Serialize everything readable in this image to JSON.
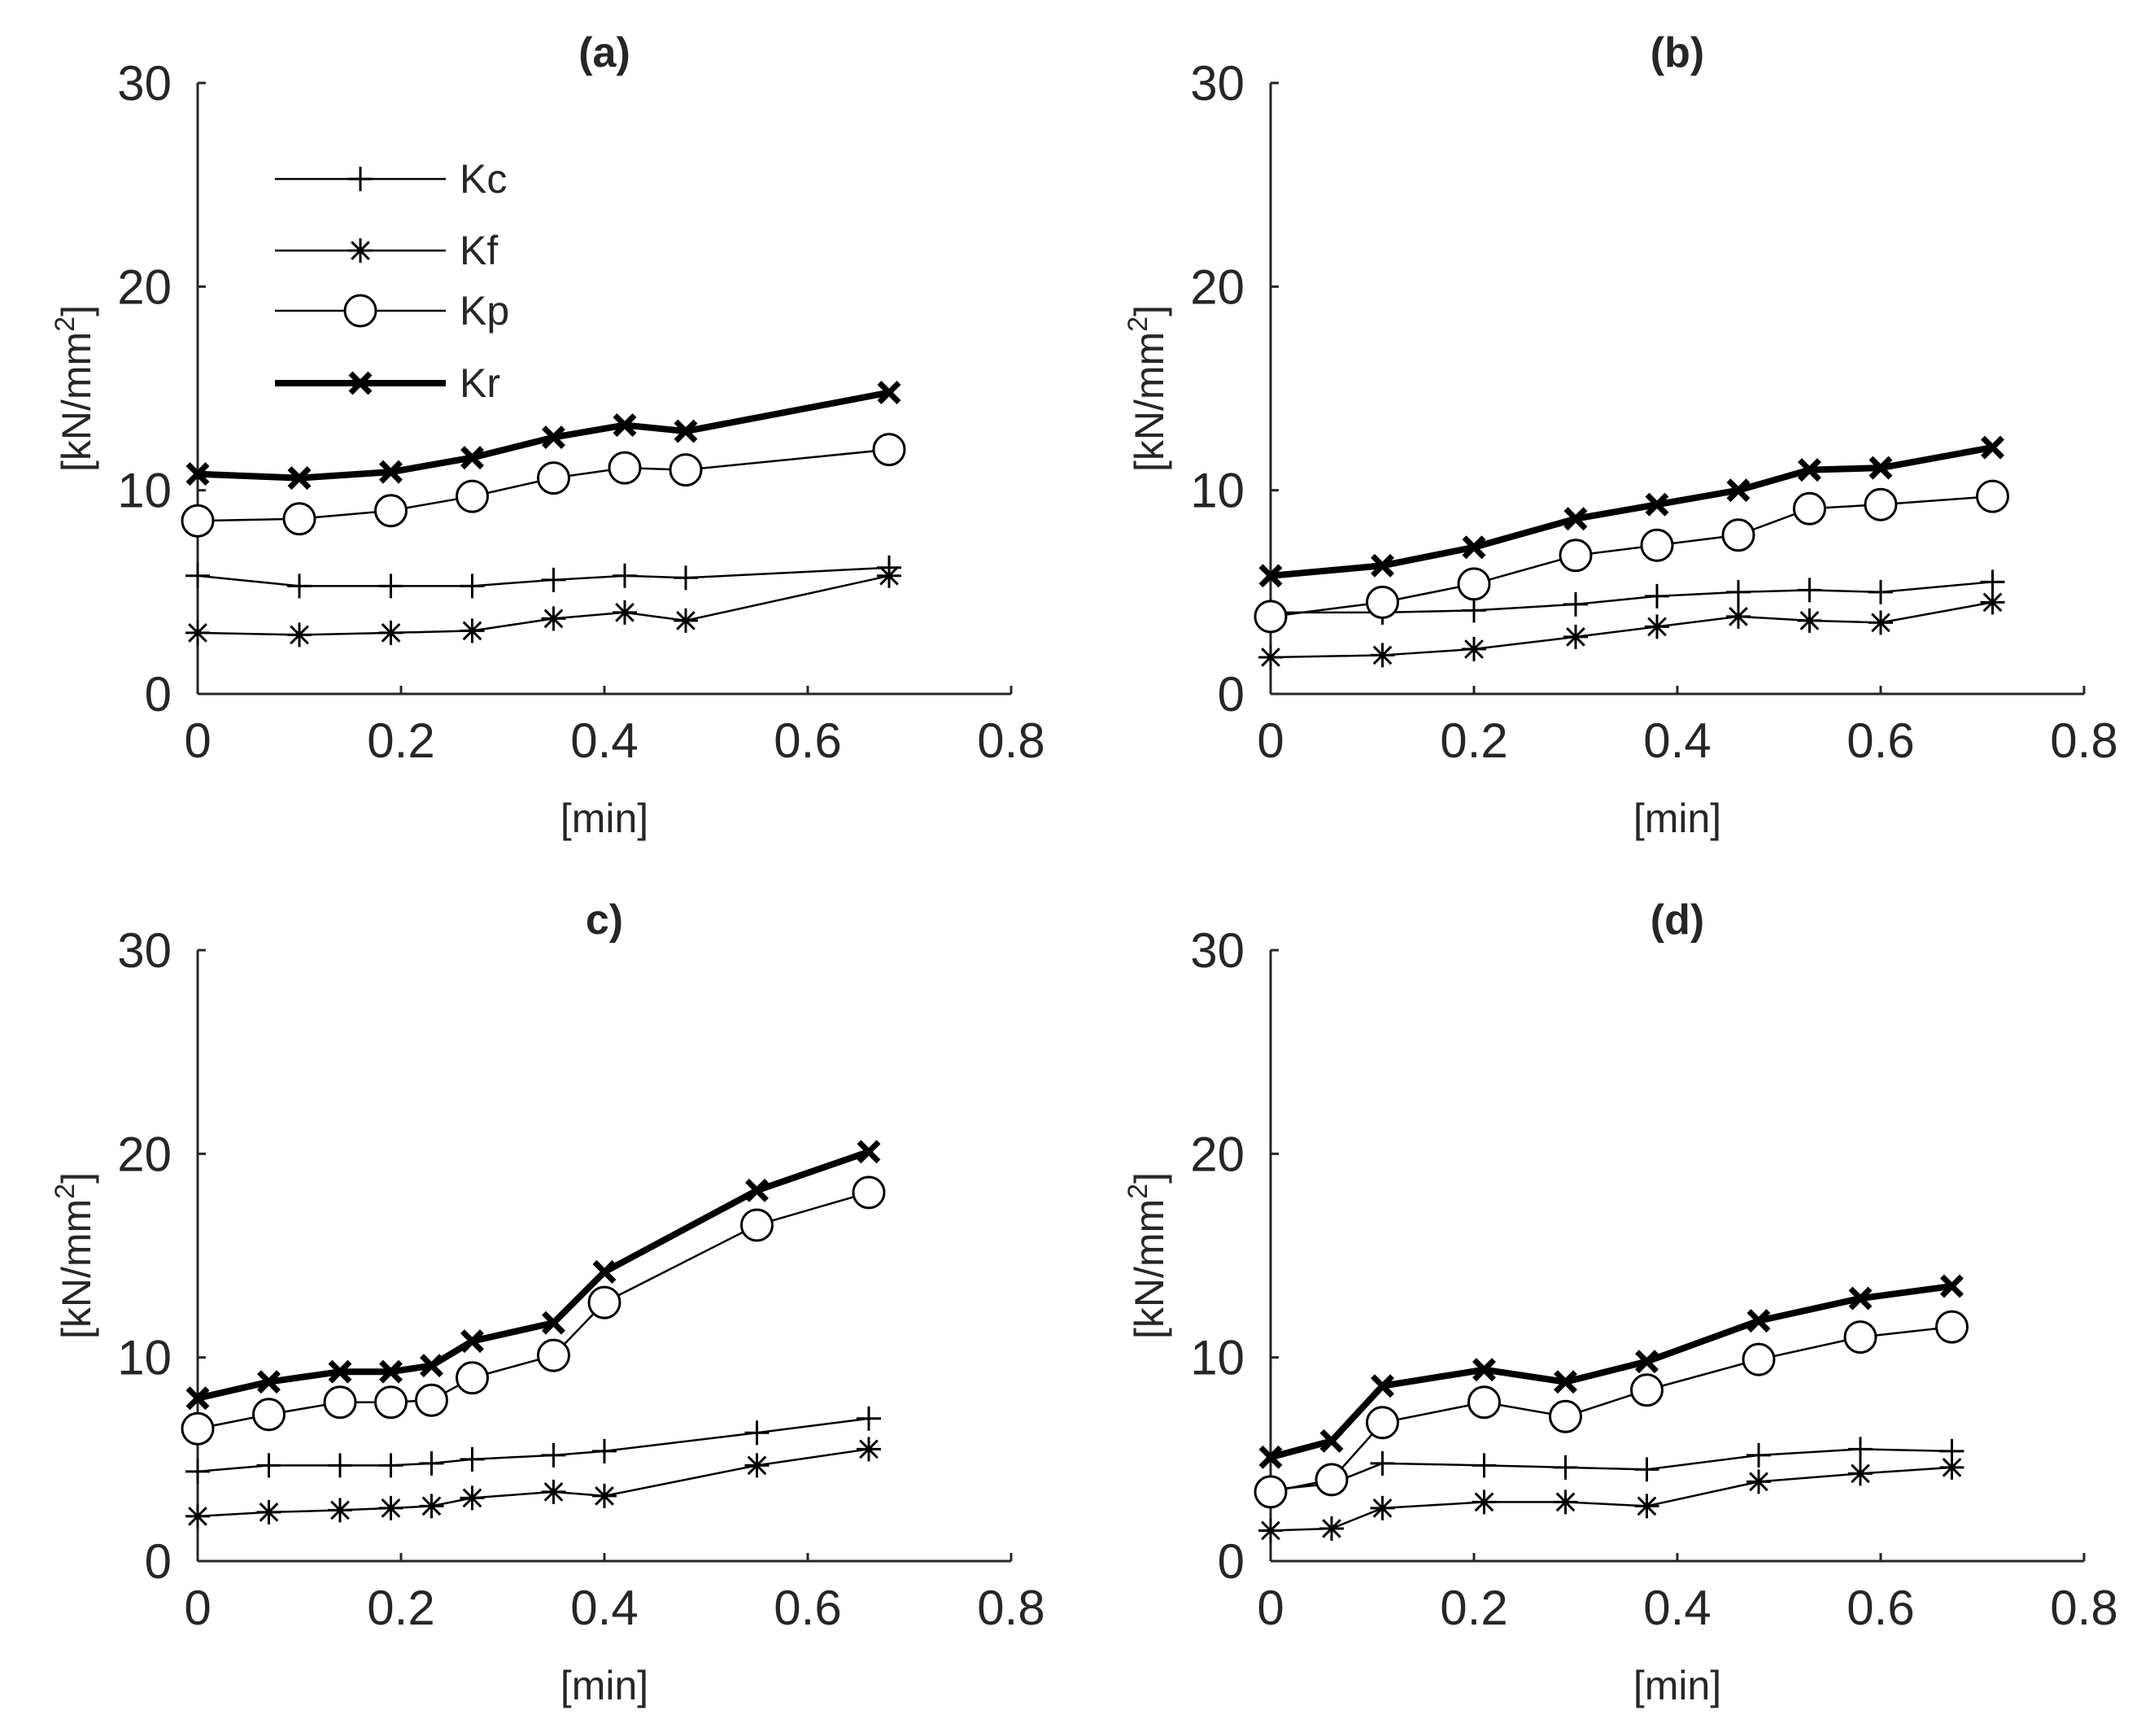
{
  "figure": {
    "background": "#ffffff",
    "ink": "#000000",
    "axis_color": "#262626"
  },
  "chart_data": [
    {
      "type": "line",
      "title": "(a)",
      "xlabel": "[min]",
      "ylabel": "[kN/mm",
      "ylabel_sup": "2",
      "ylabel_close": "]",
      "xlim": [
        0,
        0.8
      ],
      "ylim": [
        0,
        30
      ],
      "xticks": [
        "0",
        "0.2",
        "0.4",
        "0.6",
        "0.8"
      ],
      "yticks": [
        "0",
        "10",
        "20",
        "30"
      ],
      "legend": {
        "position": "top-left",
        "entries": [
          "Kc",
          "Kf",
          "Kp",
          "Kr"
        ]
      },
      "series": [
        {
          "name": "Kc",
          "marker": "plus",
          "x": [
            0,
            0.1,
            0.19,
            0.27,
            0.35,
            0.42,
            0.48,
            0.68
          ],
          "y": [
            5.8,
            5.3,
            5.3,
            5.3,
            5.6,
            5.8,
            5.7,
            6.2
          ]
        },
        {
          "name": "Kf",
          "marker": "asterisk",
          "x": [
            0,
            0.1,
            0.19,
            0.27,
            0.35,
            0.42,
            0.48,
            0.68
          ],
          "y": [
            3.0,
            2.9,
            3.0,
            3.1,
            3.7,
            4.0,
            3.6,
            5.8
          ]
        },
        {
          "name": "Kp",
          "marker": "circle",
          "x": [
            0,
            0.1,
            0.19,
            0.27,
            0.35,
            0.42,
            0.48,
            0.68
          ],
          "y": [
            8.5,
            8.6,
            9.0,
            9.7,
            10.6,
            11.1,
            11.0,
            12.0
          ]
        },
        {
          "name": "Kr",
          "marker": "x",
          "thick": true,
          "x": [
            0,
            0.1,
            0.19,
            0.27,
            0.35,
            0.42,
            0.48,
            0.68
          ],
          "y": [
            10.8,
            10.6,
            10.9,
            11.6,
            12.6,
            13.2,
            12.9,
            14.8
          ]
        }
      ]
    },
    {
      "type": "line",
      "title": "(b)",
      "xlabel": "[min]",
      "ylabel": "[kN/mm",
      "ylabel_sup": "2",
      "ylabel_close": "]",
      "xlim": [
        0,
        0.8
      ],
      "ylim": [
        0,
        30
      ],
      "xticks": [
        "0",
        "0.2",
        "0.4",
        "0.6",
        "0.8"
      ],
      "yticks": [
        "0",
        "10",
        "20",
        "30"
      ],
      "series": [
        {
          "name": "Kc",
          "marker": "plus",
          "x": [
            0,
            0.11,
            0.2,
            0.3,
            0.38,
            0.46,
            0.53,
            0.6,
            0.71
          ],
          "y": [
            4.0,
            4.0,
            4.1,
            4.4,
            4.8,
            5.0,
            5.1,
            5.0,
            5.5
          ]
        },
        {
          "name": "Kf",
          "marker": "asterisk",
          "x": [
            0,
            0.11,
            0.2,
            0.3,
            0.38,
            0.46,
            0.53,
            0.6,
            0.71
          ],
          "y": [
            1.8,
            1.9,
            2.2,
            2.8,
            3.3,
            3.8,
            3.6,
            3.5,
            4.5
          ]
        },
        {
          "name": "Kp",
          "marker": "circle",
          "x": [
            0,
            0.11,
            0.2,
            0.3,
            0.38,
            0.46,
            0.53,
            0.6,
            0.71
          ],
          "y": [
            3.8,
            4.5,
            5.4,
            6.8,
            7.3,
            7.8,
            9.1,
            9.3,
            9.7
          ]
        },
        {
          "name": "Kr",
          "marker": "x",
          "thick": true,
          "x": [
            0,
            0.11,
            0.2,
            0.3,
            0.38,
            0.46,
            0.53,
            0.6,
            0.71
          ],
          "y": [
            5.8,
            6.3,
            7.2,
            8.6,
            9.3,
            10.0,
            11.0,
            11.1,
            12.1
          ]
        }
      ]
    },
    {
      "type": "line",
      "title": "c)",
      "xlabel": "[min]",
      "ylabel": "[kN/mm",
      "ylabel_sup": "2",
      "ylabel_close": "]",
      "xlim": [
        0,
        0.8
      ],
      "ylim": [
        0,
        30
      ],
      "xticks": [
        "0",
        "0.2",
        "0.4",
        "0.6",
        "0.8"
      ],
      "yticks": [
        "0",
        "10",
        "20",
        "30"
      ],
      "series": [
        {
          "name": "Kc",
          "marker": "plus",
          "x": [
            0,
            0.07,
            0.14,
            0.19,
            0.23,
            0.27,
            0.35,
            0.4,
            0.55,
            0.66
          ],
          "y": [
            4.4,
            4.7,
            4.7,
            4.7,
            4.8,
            5.0,
            5.2,
            5.4,
            6.3,
            7.0
          ]
        },
        {
          "name": "Kf",
          "marker": "asterisk",
          "x": [
            0,
            0.07,
            0.14,
            0.19,
            0.23,
            0.27,
            0.35,
            0.4,
            0.55,
            0.66
          ],
          "y": [
            2.2,
            2.4,
            2.5,
            2.6,
            2.7,
            3.1,
            3.4,
            3.2,
            4.7,
            5.5
          ]
        },
        {
          "name": "Kp",
          "marker": "circle",
          "x": [
            0,
            0.07,
            0.14,
            0.19,
            0.23,
            0.27,
            0.35,
            0.4,
            0.55,
            0.66
          ],
          "y": [
            6.5,
            7.2,
            7.8,
            7.8,
            7.9,
            9.0,
            10.1,
            12.7,
            16.5,
            18.1
          ]
        },
        {
          "name": "Kr",
          "marker": "x",
          "thick": true,
          "x": [
            0,
            0.07,
            0.14,
            0.19,
            0.23,
            0.27,
            0.35,
            0.4,
            0.55,
            0.66
          ],
          "y": [
            8.0,
            8.8,
            9.3,
            9.3,
            9.6,
            10.8,
            11.7,
            14.2,
            18.2,
            20.1
          ]
        }
      ]
    },
    {
      "type": "line",
      "title": "(d)",
      "xlabel": "[min]",
      "ylabel": "[kN/mm",
      "ylabel_sup": "2",
      "ylabel_close": "]",
      "xlim": [
        0,
        0.8
      ],
      "ylim": [
        0,
        30
      ],
      "xticks": [
        "0",
        "0.2",
        "0.4",
        "0.6",
        "0.8"
      ],
      "yticks": [
        "0",
        "10",
        "20",
        "30"
      ],
      "series": [
        {
          "name": "Kc",
          "marker": "plus",
          "x": [
            0,
            0.06,
            0.11,
            0.21,
            0.29,
            0.37,
            0.48,
            0.58,
            0.67
          ],
          "y": [
            3.5,
            3.8,
            4.8,
            4.7,
            4.6,
            4.5,
            5.2,
            5.5,
            5.4
          ]
        },
        {
          "name": "Kf",
          "marker": "asterisk",
          "x": [
            0,
            0.06,
            0.11,
            0.21,
            0.29,
            0.37,
            0.48,
            0.58,
            0.67
          ],
          "y": [
            1.5,
            1.6,
            2.6,
            2.9,
            2.9,
            2.7,
            3.9,
            4.3,
            4.6
          ]
        },
        {
          "name": "Kp",
          "marker": "circle",
          "x": [
            0,
            0.06,
            0.11,
            0.21,
            0.29,
            0.37,
            0.48,
            0.58,
            0.67
          ],
          "y": [
            3.4,
            4.0,
            6.8,
            7.8,
            7.1,
            8.4,
            9.9,
            11.0,
            11.5
          ]
        },
        {
          "name": "Kr",
          "marker": "x",
          "thick": true,
          "x": [
            0,
            0.06,
            0.11,
            0.21,
            0.29,
            0.37,
            0.48,
            0.58,
            0.67
          ],
          "y": [
            5.1,
            5.9,
            8.6,
            9.4,
            8.8,
            9.8,
            11.8,
            12.9,
            13.5
          ]
        }
      ]
    }
  ]
}
